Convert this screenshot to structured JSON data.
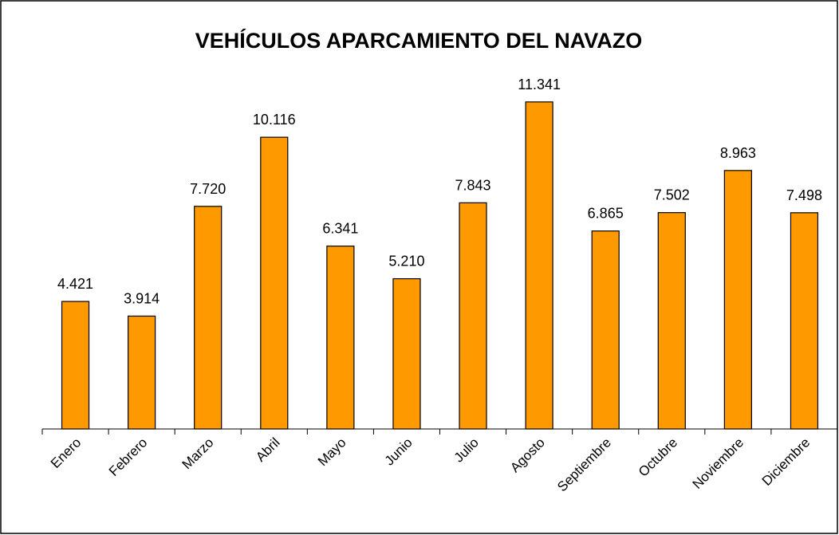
{
  "chart_data": {
    "type": "bar",
    "title": "VEHÍCULOS APARCAMIENTO DEL NAVAZO",
    "categories": [
      "Enero",
      "Febrero",
      "Marzo",
      "Abril",
      "Mayo",
      "Junio",
      "Julio",
      "Agosto",
      "Septiembre",
      "Octubre",
      "Noviembre",
      "Diciembre"
    ],
    "values": [
      4421,
      3914,
      7720,
      10116,
      6341,
      5210,
      7843,
      11341,
      6865,
      7502,
      8963,
      7498
    ],
    "value_labels": [
      "4.421",
      "3.914",
      "7.720",
      "10.116",
      "6.341",
      "5.210",
      "7.843",
      "11.341",
      "6.865",
      "7.502",
      "8.963",
      "7.498"
    ],
    "color": "#ff9900",
    "ylim": [
      0,
      12000
    ]
  }
}
